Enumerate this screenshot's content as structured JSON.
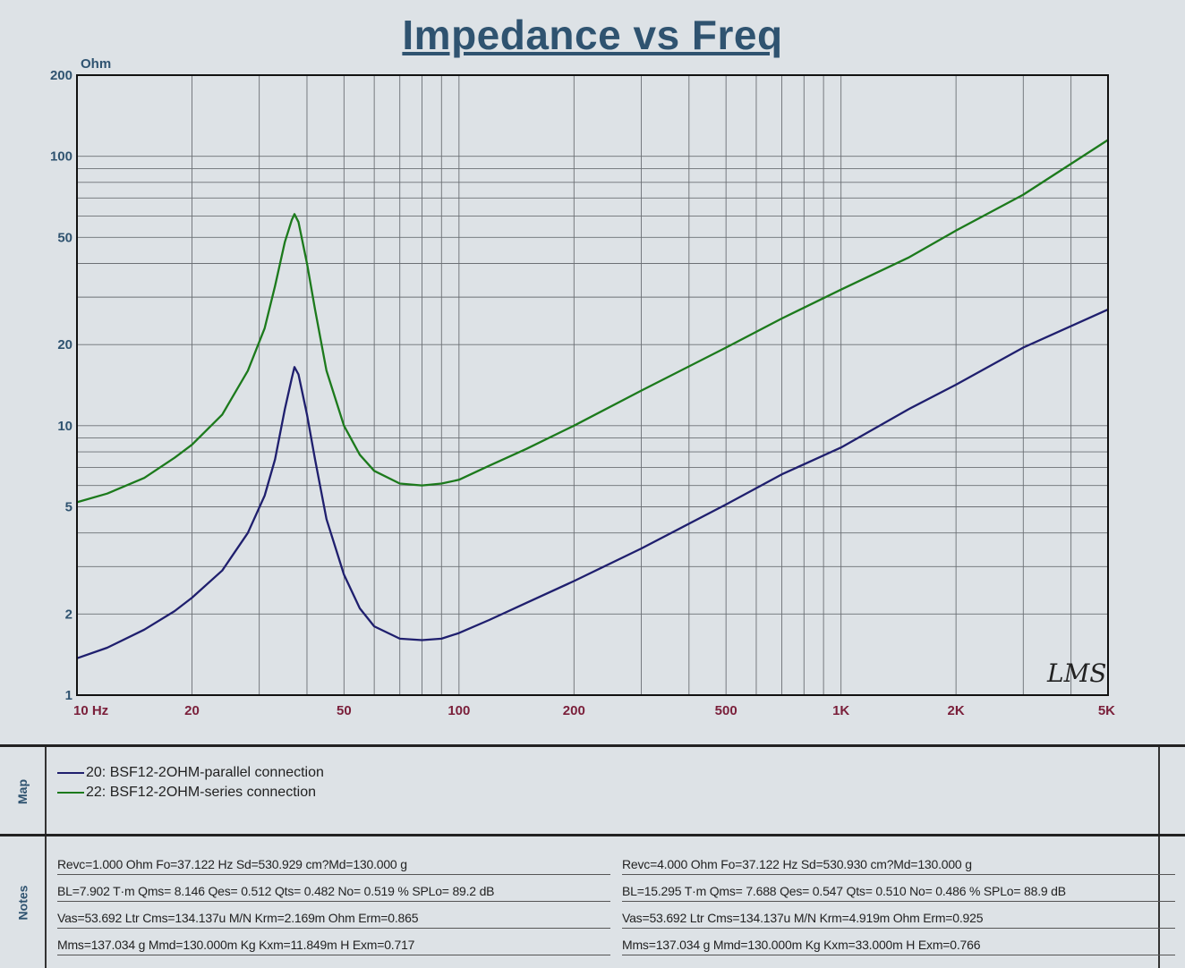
{
  "chart_data": {
    "type": "line",
    "title": "Impedance vs Freq",
    "ylabel": "Ohm",
    "x_scale": "log",
    "y_scale": "log",
    "xlim": [
      10,
      5000
    ],
    "ylim": [
      1,
      200
    ],
    "x_ticks": [
      {
        "value": 10,
        "label": "10  Hz"
      },
      {
        "value": 20,
        "label": "20"
      },
      {
        "value": 50,
        "label": "50"
      },
      {
        "value": 100,
        "label": "100"
      },
      {
        "value": 200,
        "label": "200"
      },
      {
        "value": 500,
        "label": "500"
      },
      {
        "value": 1000,
        "label": "1K"
      },
      {
        "value": 2000,
        "label": "2K"
      },
      {
        "value": 5000,
        "label": "5K"
      }
    ],
    "y_ticks": [
      {
        "value": 1,
        "label": "1"
      },
      {
        "value": 2,
        "label": "2"
      },
      {
        "value": 5,
        "label": "5"
      },
      {
        "value": 10,
        "label": "10"
      },
      {
        "value": 20,
        "label": "20"
      },
      {
        "value": 50,
        "label": "50"
      },
      {
        "value": 100,
        "label": "100"
      },
      {
        "value": 200,
        "label": "200"
      }
    ],
    "grid": true,
    "watermark": "LMS",
    "series": [
      {
        "name": "20: BSF12-2OHM-parallel connection",
        "color": "#1f1f6e",
        "points": [
          [
            10,
            1.37
          ],
          [
            12,
            1.5
          ],
          [
            15,
            1.75
          ],
          [
            18,
            2.05
          ],
          [
            20,
            2.3
          ],
          [
            24,
            2.9
          ],
          [
            28,
            4.0
          ],
          [
            31,
            5.5
          ],
          [
            33,
            7.5
          ],
          [
            35,
            11.5
          ],
          [
            36.5,
            15
          ],
          [
            37.1,
            16.5
          ],
          [
            38,
            15.5
          ],
          [
            40,
            11
          ],
          [
            42,
            7.5
          ],
          [
            45,
            4.5
          ],
          [
            50,
            2.8
          ],
          [
            55,
            2.1
          ],
          [
            60,
            1.8
          ],
          [
            70,
            1.62
          ],
          [
            80,
            1.6
          ],
          [
            90,
            1.62
          ],
          [
            100,
            1.7
          ],
          [
            120,
            1.9
          ],
          [
            150,
            2.2
          ],
          [
            200,
            2.65
          ],
          [
            300,
            3.5
          ],
          [
            500,
            5.1
          ],
          [
            700,
            6.6
          ],
          [
            1000,
            8.3
          ],
          [
            1500,
            11.5
          ],
          [
            2000,
            14.2
          ],
          [
            3000,
            19.5
          ],
          [
            5000,
            27
          ]
        ]
      },
      {
        "name": "22: BSF12-2OHM-series connection",
        "color": "#1c7a1c",
        "points": [
          [
            10,
            5.2
          ],
          [
            12,
            5.6
          ],
          [
            15,
            6.4
          ],
          [
            18,
            7.6
          ],
          [
            20,
            8.5
          ],
          [
            24,
            11
          ],
          [
            28,
            16
          ],
          [
            31,
            23
          ],
          [
            33,
            33
          ],
          [
            35,
            48
          ],
          [
            36.5,
            58
          ],
          [
            37.1,
            61
          ],
          [
            38,
            57
          ],
          [
            40,
            40
          ],
          [
            42,
            27
          ],
          [
            45,
            16
          ],
          [
            50,
            10
          ],
          [
            55,
            7.8
          ],
          [
            60,
            6.8
          ],
          [
            70,
            6.1
          ],
          [
            80,
            6.0
          ],
          [
            90,
            6.1
          ],
          [
            100,
            6.3
          ],
          [
            120,
            7.1
          ],
          [
            150,
            8.2
          ],
          [
            200,
            10
          ],
          [
            300,
            13.5
          ],
          [
            500,
            19.5
          ],
          [
            700,
            25
          ],
          [
            1000,
            32
          ],
          [
            1500,
            42
          ],
          [
            2000,
            53
          ],
          [
            3000,
            72
          ],
          [
            5000,
            115
          ]
        ]
      }
    ]
  },
  "map": {
    "tab_label": "Map",
    "items": [
      {
        "label": "20: BSF12-2OHM-parallel connection",
        "color": "#1f1f6e"
      },
      {
        "label": "22: BSF12-2OHM-series connection",
        "color": "#1c7a1c"
      }
    ]
  },
  "notes": {
    "tab_label": "Notes",
    "left": [
      "Revc=1.000 Ohm  Fo=37.122 Hz  Sd=530.929 cm?Md=130.000 g",
      "BL=7.902 T·m  Qms= 8.146  Qes= 0.512  Qts= 0.482  No= 0.519 %  SPLo= 89.2 dB",
      "Vas=53.692 Ltr  Cms=134.137u M/N  Krm=2.169m Ohm  Erm=0.865",
      "Mms=137.034 g  Mmd=130.000m Kg  Kxm=11.849m H  Exm=0.717"
    ],
    "right": [
      "Revc=4.000 Ohm  Fo=37.122 Hz  Sd=530.930 cm?Md=130.000 g",
      "BL=15.295 T·m  Qms= 7.688  Qes= 0.547  Qts= 0.510  No= 0.486 %  SPLo= 88.9 dB",
      "Vas=53.692 Ltr  Cms=134.137u M/N  Krm=4.919m Ohm  Erm=0.925",
      "Mms=137.034 g  Mmd=130.000m Kg  Kxm=33.000m H  Exm=0.766"
    ]
  }
}
